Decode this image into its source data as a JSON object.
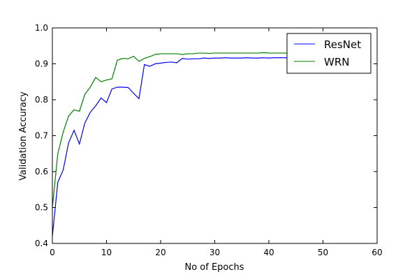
{
  "chart_data": {
    "type": "line",
    "title": "",
    "xlabel": "No of Epochs",
    "ylabel": "Validation Accuracy",
    "xlim": [
      0,
      60
    ],
    "ylim": [
      0.4,
      1.0
    ],
    "xticks": [
      "0",
      "10",
      "20",
      "30",
      "40",
      "50",
      "60"
    ],
    "yticks": [
      "0.4",
      "0.5",
      "0.6",
      "0.7",
      "0.8",
      "0.9",
      "1.0"
    ],
    "grid": false,
    "legend_position": "top-right",
    "x": [
      0,
      1,
      2,
      3,
      4,
      5,
      6,
      7,
      8,
      9,
      10,
      11,
      12,
      13,
      14,
      15,
      16,
      17,
      18,
      19,
      20,
      21,
      22,
      23,
      24,
      25,
      26,
      27,
      28,
      29,
      30,
      31,
      32,
      33,
      34,
      35,
      36,
      37,
      38,
      39,
      40,
      41,
      42,
      43,
      44
    ],
    "series": [
      {
        "name": "ResNet",
        "color": "#0000ff",
        "values": [
          0.42,
          0.57,
          0.605,
          0.68,
          0.715,
          0.677,
          0.735,
          0.765,
          0.783,
          0.805,
          0.792,
          0.83,
          0.835,
          0.835,
          0.834,
          0.818,
          0.803,
          0.898,
          0.893,
          0.9,
          0.902,
          0.904,
          0.905,
          0.903,
          0.915,
          0.913,
          0.914,
          0.914,
          0.916,
          0.915,
          0.916,
          0.916,
          0.917,
          0.916,
          0.916,
          0.916,
          0.917,
          0.916,
          0.916,
          0.917,
          0.916,
          0.917,
          0.917,
          0.917,
          0.917
        ]
      },
      {
        "name": "WRN",
        "color": "#008000",
        "values": [
          0.5,
          0.65,
          0.71,
          0.755,
          0.772,
          0.768,
          0.815,
          0.835,
          0.862,
          0.85,
          0.855,
          0.858,
          0.91,
          0.915,
          0.914,
          0.921,
          0.907,
          0.915,
          0.92,
          0.926,
          0.928,
          0.928,
          0.928,
          0.928,
          0.926,
          0.928,
          0.928,
          0.93,
          0.93,
          0.929,
          0.93,
          0.93,
          0.93,
          0.93,
          0.93,
          0.93,
          0.93,
          0.93,
          0.93,
          0.931,
          0.93,
          0.93,
          0.93,
          0.93,
          0.93
        ]
      }
    ]
  }
}
